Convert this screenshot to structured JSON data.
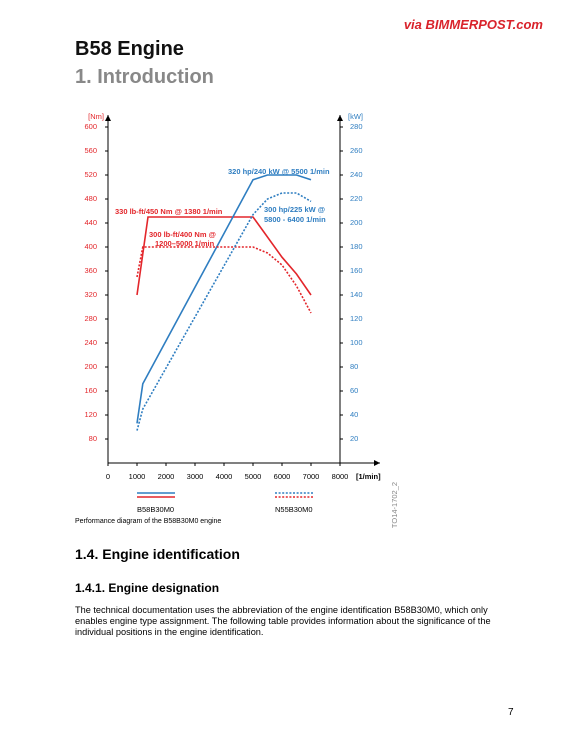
{
  "header": {
    "source": "via BIMMERPOST.com",
    "title": "B58 Engine",
    "subtitle": "1. Introduction"
  },
  "chart_data": {
    "type": "line",
    "y_label": "[Nm]",
    "y2_label": "[kW]",
    "x_label": "[1/min]",
    "xlim": [
      0,
      8000
    ],
    "xticks": [
      0,
      1000,
      2000,
      3000,
      4000,
      5000,
      6000,
      7000,
      8000
    ],
    "ylim": [
      40,
      620
    ],
    "yticks": [
      80,
      120,
      160,
      200,
      240,
      280,
      320,
      360,
      400,
      440,
      480,
      520,
      560,
      600
    ],
    "y2lim": [
      0,
      290
    ],
    "y2ticks": [
      20,
      40,
      60,
      80,
      100,
      120,
      140,
      160,
      180,
      200,
      220,
      240,
      260,
      280
    ],
    "y_color": "#e3262b",
    "y2_color": "#2f7ec1",
    "series": [
      {
        "name": "B58B30M0",
        "color": "#e3262b",
        "style": "solid",
        "axis": "y",
        "x": [
          1000,
          1380,
          5000,
          5300,
          6000,
          6500,
          7000
        ],
        "values": [
          320,
          450,
          450,
          430,
          383,
          355,
          320
        ]
      },
      {
        "name": "B58B30M0",
        "color": "#2f7ec1",
        "style": "solid",
        "axis": "y2",
        "x": [
          1000,
          1200,
          5000,
          5500,
          6500,
          7000
        ],
        "values": [
          33,
          66,
          236,
          240,
          240,
          236
        ]
      },
      {
        "name": "N55B30M0",
        "color": "#e3262b",
        "style": "dotted",
        "axis": "y",
        "x": [
          1000,
          1200,
          5000,
          5500,
          6000,
          6500,
          7000
        ],
        "values": [
          350,
          400,
          400,
          390,
          370,
          335,
          290
        ]
      },
      {
        "name": "N55B30M0",
        "color": "#2f7ec1",
        "style": "dotted",
        "axis": "y2",
        "x": [
          1000,
          1200,
          5000,
          5500,
          6000,
          6500,
          7000
        ],
        "values": [
          27,
          45,
          207,
          220,
          225,
          225,
          218
        ]
      }
    ],
    "annotations": [
      {
        "text": "330 lb-ft/450 Nm @ 1380 1/min",
        "color": "#e3262b"
      },
      {
        "text": "300 lb-ft/400 Nm @",
        "color": "#e3262b"
      },
      {
        "text": "1200–5000 1/min",
        "color": "#e3262b"
      },
      {
        "text": "320 hp/240 kW @ 5500 1/min",
        "color": "#2f7ec1"
      },
      {
        "text": "300 hp/225 kW @",
        "color": "#2f7ec1"
      },
      {
        "text": "5800 - 6400 1/min",
        "color": "#2f7ec1"
      }
    ],
    "figure_id": "TO14-1702_2"
  },
  "caption": "Performance diagram of the B58B30M0 engine",
  "section": {
    "title": "1.4. Engine identification",
    "subsection": "1.4.1. Engine designation",
    "paragraph": "The technical documentation uses the abbreviation of the engine identification B58B30M0, which only enables engine type assignment. The following table provides information about the significance of the individual positions in the engine identification."
  },
  "page_number": "7"
}
